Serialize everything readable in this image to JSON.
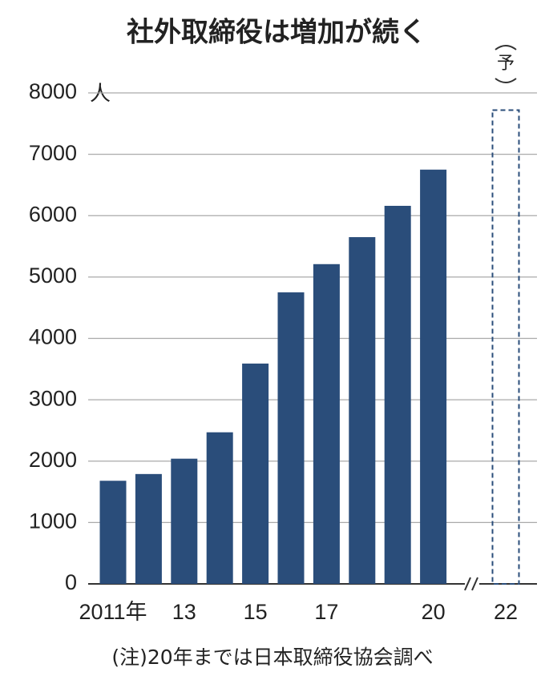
{
  "chart_data": {
    "type": "bar",
    "title": "社外取締役は増加が続く",
    "y_unit": "人",
    "categories": [
      "2011年",
      null,
      "13",
      null,
      "15",
      null,
      "17",
      null,
      null,
      "20",
      "22"
    ],
    "series": [
      {
        "color": "#2a4d7a",
        "values": [
          1680,
          1790,
          2040,
          2470,
          3590,
          4750,
          5210,
          5650,
          6160,
          6750,
          null
        ]
      },
      {
        "color": "#2a4d7a",
        "dashed": true,
        "values": [
          null,
          null,
          null,
          null,
          null,
          null,
          null,
          null,
          null,
          null,
          7720
        ]
      }
    ],
    "annotation": "予",
    "note": "(注)20年までは日本取締役協会調べ",
    "ylim": [
      0,
      8000
    ],
    "yticks": [
      0,
      1000,
      2000,
      3000,
      4000,
      5000,
      6000,
      7000,
      8000
    ],
    "grid": true
  }
}
